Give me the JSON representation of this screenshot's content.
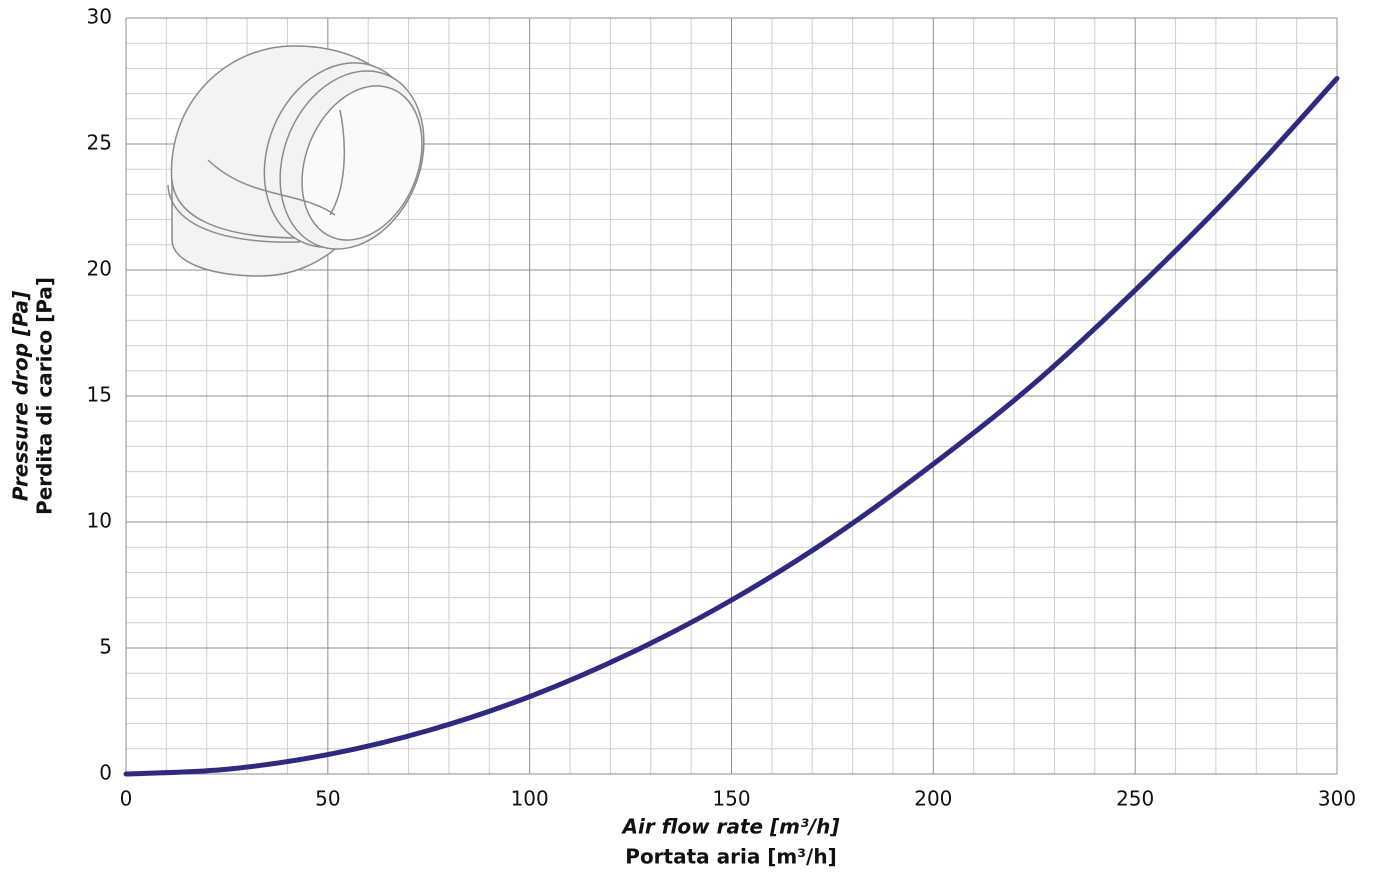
{
  "chart_data": {
    "type": "line",
    "x_label": [
      "Air flow rate [m³/h]",
      "Portata aria [m³/h]"
    ],
    "y_label": [
      "Pressure drop [Pa]",
      "Perdita di carico [Pa]"
    ],
    "x": [
      0,
      25,
      50,
      75,
      100,
      125,
      150,
      175,
      200,
      225,
      250,
      275,
      300
    ],
    "values": [
      0,
      0.19,
      0.77,
      1.73,
      3.07,
      4.8,
      6.9,
      9.4,
      12.3,
      15.5,
      19.2,
      23.2,
      27.6
    ],
    "color": "#2f2a80",
    "xlim": [
      0,
      300
    ],
    "xticks": [
      0,
      50,
      100,
      150,
      200,
      250,
      300
    ],
    "ylim": [
      0,
      30
    ],
    "yticks": [
      0,
      5,
      10,
      15,
      20,
      25,
      30
    ],
    "xminorticks": [
      10,
      20,
      30,
      40,
      60,
      70,
      80,
      90,
      110,
      120,
      130,
      140,
      160,
      170,
      180,
      190,
      210,
      220,
      230,
      240,
      260,
      270,
      280,
      290
    ],
    "yminorticks": [
      1,
      2,
      3,
      4,
      6,
      7,
      8,
      9,
      11,
      12,
      13,
      14,
      16,
      17,
      18,
      19,
      21,
      22,
      23,
      24,
      26,
      27,
      28,
      29
    ],
    "grid": true
  }
}
